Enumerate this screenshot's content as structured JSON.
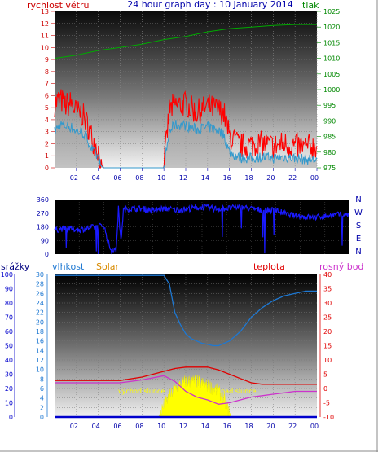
{
  "panel1": {
    "title": "24 hour graph day : 10 January 2014",
    "left_label": "rychlost větru",
    "right_label": "tlak",
    "x_ticks": [
      "02",
      "04",
      "06",
      "08",
      "10",
      "12",
      "14",
      "16",
      "18",
      "20",
      "22",
      "00"
    ],
    "wind_ticks": [
      "0",
      "1",
      "2",
      "3",
      "4",
      "5",
      "6",
      "7",
      "8",
      "9",
      "10",
      "11",
      "12",
      "13"
    ],
    "pressure_ticks": [
      "975",
      "980",
      "985",
      "990",
      "995",
      "1000",
      "1005",
      "1010",
      "1015",
      "1020",
      "1025"
    ],
    "colors": {
      "wind_gust": "#ff0000",
      "wind_avg": "#3399cc",
      "pressure": "#00aa00",
      "left_text": "#cc0000",
      "right_text": "#008800",
      "title_text": "#0000aa"
    }
  },
  "panel2": {
    "left_ticks": [
      "0",
      "90",
      "180",
      "270",
      "360"
    ],
    "compass": [
      "N",
      "W",
      "S",
      "E",
      "N"
    ],
    "colors": {
      "direction": "#1a1aff",
      "ticks": "#0000aa"
    }
  },
  "panel3": {
    "labels": {
      "rain": "srážky",
      "humidity": "vlhkost",
      "solar": "Solar",
      "temp": "teplota",
      "dew": "rosný bod"
    },
    "rain_ticks": [
      "0",
      "10",
      "20",
      "30",
      "40",
      "50",
      "60",
      "70",
      "80",
      "90",
      "100"
    ],
    "humidity_ticks": [
      "0",
      "2",
      "4",
      "6",
      "8",
      "10",
      "12",
      "14",
      "16",
      "18",
      "20",
      "22",
      "24",
      "26",
      "28",
      "30"
    ],
    "temp_ticks": [
      "-10",
      "-5",
      "0",
      "5",
      "10",
      "15",
      "20",
      "25",
      "30",
      "35",
      "40"
    ],
    "x_ticks": [
      "02",
      "04",
      "06",
      "08",
      "10",
      "12",
      "14",
      "16",
      "18",
      "20",
      "22",
      "00"
    ],
    "annotations": {
      "sunrise": "východ slunce",
      "sunset": "západ slunce"
    },
    "colors": {
      "humidity": "#1e78d2",
      "temp": "#e00000",
      "dew": "#cc33cc",
      "solar": "#ffff00",
      "rain": "#0000cc"
    }
  },
  "chart_data": [
    {
      "type": "line",
      "title": "24 hour graph day : 10 January 2014",
      "ylabel": "rychlost větru",
      "y2label": "tlak",
      "ylim": [
        0,
        13
      ],
      "y2lim": [
        975,
        1025
      ],
      "series": [
        {
          "name": "wind gust",
          "axis": "left",
          "x": [
            0.0,
            0.5,
            1.0,
            1.5,
            2.0,
            2.5,
            3.0,
            3.5,
            4.0,
            4.2,
            4.5,
            5.0,
            6.0,
            7.0,
            8.0,
            9.0,
            9.8,
            10.0,
            10.5,
            11.0,
            12.0,
            13.0,
            14.0,
            15.0,
            15.5,
            16.0,
            17.0,
            18.0,
            19.0,
            20.0,
            21.0,
            22.0,
            23.0,
            23.5
          ],
          "values": [
            5.3,
            5.7,
            5.2,
            5.4,
            4.6,
            4.5,
            3.6,
            2.3,
            1.5,
            0.4,
            0,
            0,
            0,
            0,
            0,
            0,
            0,
            0,
            4.8,
            5.2,
            5.3,
            4.6,
            5.1,
            4.8,
            4.5,
            2.6,
            1.8,
            1.9,
            2.0,
            1.8,
            2.0,
            1.8,
            1.7,
            1.8
          ]
        },
        {
          "name": "wind average",
          "axis": "left",
          "x": [
            0.0,
            0.5,
            1.0,
            1.5,
            2.0,
            2.5,
            3.0,
            3.5,
            4.0,
            4.2,
            4.5,
            5.0,
            6.0,
            7.0,
            8.0,
            9.0,
            9.8,
            10.0,
            10.5,
            11.0,
            12.0,
            13.0,
            14.0,
            15.0,
            15.5,
            16.0,
            17.0,
            18.0,
            19.0,
            20.0,
            21.0,
            22.0,
            23.0,
            23.5
          ],
          "values": [
            3.0,
            3.6,
            3.5,
            3.4,
            3.0,
            3.0,
            2.4,
            1.4,
            0.8,
            0.2,
            0,
            0,
            0,
            0,
            0,
            0,
            0,
            0,
            3.0,
            3.6,
            3.5,
            3.2,
            3.4,
            3.1,
            2.7,
            1.3,
            0.8,
            0.8,
            0.9,
            0.8,
            0.9,
            0.8,
            0.7,
            0.7
          ]
        },
        {
          "name": "pressure",
          "axis": "right",
          "x": [
            0,
            2,
            4,
            6,
            8,
            10,
            12,
            14,
            16,
            18,
            20,
            22,
            24
          ],
          "values": [
            1010,
            1011,
            1012.5,
            1013.5,
            1014.5,
            1016,
            1017,
            1018.5,
            1019.5,
            1020,
            1020.5,
            1020.8,
            1020.8
          ]
        }
      ],
      "x_ticks": [
        "02",
        "04",
        "06",
        "08",
        "10",
        "12",
        "14",
        "16",
        "18",
        "20",
        "22",
        "00"
      ],
      "grid": true
    },
    {
      "type": "line",
      "ylim": [
        0,
        360
      ],
      "series": [
        {
          "name": "wind direction",
          "x": [
            0,
            1,
            2,
            3,
            4,
            4.5,
            5,
            5.2,
            5.4,
            5.6,
            6,
            7,
            8,
            9,
            10,
            11,
            12,
            13,
            14,
            15,
            16,
            17,
            18,
            19,
            20,
            21,
            22,
            23,
            24
          ],
          "values": [
            160,
            170,
            160,
            175,
            190,
            40,
            20,
            300,
            80,
            290,
            300,
            300,
            290,
            300,
            290,
            300,
            310,
            300,
            300,
            310,
            300,
            290,
            290,
            260,
            250,
            240,
            250,
            260,
            260
          ]
        }
      ],
      "x_ticks": [
        "02",
        "04",
        "06",
        "08",
        "10",
        "12",
        "14",
        "16",
        "18",
        "20",
        "22",
        "00"
      ],
      "grid": true
    },
    {
      "type": "line",
      "ylabel": "srážky / vlhkost",
      "y2label": "teplota / rosný bod",
      "y2lim": [
        -10,
        40
      ],
      "humidity_ylim": [
        0,
        30
      ],
      "rain_ylim": [
        0,
        100
      ],
      "series": [
        {
          "name": "vlhkost",
          "axis": "humidity",
          "x": [
            0,
            2,
            4,
            6,
            8,
            10,
            10.5,
            11,
            11.5,
            12,
            12.5,
            13,
            13.5,
            14,
            14.5,
            15,
            16,
            17,
            18,
            19,
            20,
            21,
            22,
            23,
            24
          ],
          "values": [
            29.8,
            29.8,
            29.8,
            29.8,
            29.8,
            29.8,
            28,
            22,
            19.5,
            17.5,
            16.5,
            16,
            15.5,
            15.3,
            15,
            15,
            16,
            18,
            21,
            23,
            24.5,
            25.5,
            26,
            26.5,
            26.5
          ]
        },
        {
          "name": "teplota",
          "axis": "right",
          "x": [
            0,
            2,
            4,
            6,
            8,
            10,
            11,
            12,
            13,
            14,
            15,
            16,
            17,
            18,
            19,
            20,
            21,
            22,
            23,
            24
          ],
          "values": [
            2.8,
            2.8,
            2.8,
            2.8,
            4,
            6,
            7,
            7.5,
            7.5,
            7.5,
            6.5,
            5,
            3.5,
            2,
            1.5,
            1.5,
            1.5,
            1.5,
            1.5,
            1.5
          ]
        },
        {
          "name": "rosný bod",
          "axis": "right",
          "x": [
            0,
            2,
            4,
            6,
            8,
            10,
            11,
            12,
            13,
            14,
            15,
            16,
            17,
            18,
            19,
            20,
            21,
            22,
            23,
            24
          ],
          "values": [
            2,
            2,
            2,
            2,
            3,
            4.5,
            2.5,
            -1,
            -3,
            -4,
            -5.5,
            -5,
            -4,
            -3,
            -2.5,
            -2,
            -1.5,
            -1,
            -1,
            -1
          ]
        },
        {
          "name": "Solar",
          "axis": "rain",
          "x": [
            7.8,
            9.5,
            10,
            11,
            12,
            13,
            14,
            15,
            15.5,
            16.2
          ],
          "values": [
            0,
            0,
            8,
            20,
            25,
            25,
            22,
            18,
            12,
            0
          ]
        },
        {
          "name": "srážky",
          "axis": "rain",
          "x": [
            0,
            4,
            6,
            24
          ],
          "values": [
            0,
            0,
            0,
            0
          ]
        }
      ],
      "x_ticks": [
        "02",
        "04",
        "06",
        "08",
        "10",
        "12",
        "14",
        "16",
        "18",
        "20",
        "22",
        "00"
      ],
      "grid": true
    }
  ]
}
